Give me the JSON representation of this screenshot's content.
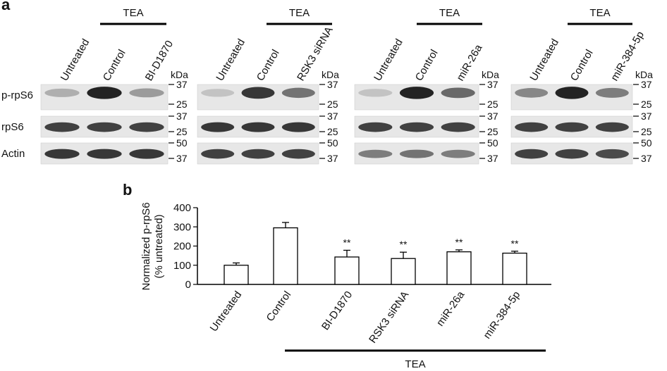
{
  "panel_a": {
    "label": "a",
    "row_labels": [
      "p-rpS6",
      "rpS6",
      "Actin"
    ],
    "unit": "kDa",
    "blots": [
      {
        "treatment_label": "TEA",
        "lanes": [
          "Untreated",
          "Control",
          "BI-D1870"
        ],
        "markers": [
          [
            "37",
            "25"
          ],
          [
            "37",
            "25"
          ],
          [
            "50",
            "37"
          ]
        ],
        "band_intensity": [
          [
            0.25,
            0.95,
            0.35
          ],
          [
            0.8,
            0.8,
            0.8
          ],
          [
            0.85,
            0.85,
            0.85
          ]
        ]
      },
      {
        "treatment_label": "TEA",
        "lanes": [
          "Untreated",
          "Control",
          "RSK3 siRNA"
        ],
        "markers": [
          [
            "37",
            "25"
          ],
          [
            "37",
            "25"
          ],
          [
            "50",
            "37"
          ]
        ],
        "band_intensity": [
          [
            0.15,
            0.85,
            0.55
          ],
          [
            0.85,
            0.85,
            0.85
          ],
          [
            0.8,
            0.8,
            0.8
          ]
        ]
      },
      {
        "treatment_label": "TEA",
        "lanes": [
          "Untreated",
          "Control",
          "miR-26a"
        ],
        "markers": [
          [
            "37",
            "25"
          ],
          [
            "37",
            "25"
          ],
          [
            "50",
            "37"
          ]
        ],
        "band_intensity": [
          [
            0.15,
            0.95,
            0.6
          ],
          [
            0.8,
            0.8,
            0.8
          ],
          [
            0.5,
            0.55,
            0.5
          ]
        ]
      },
      {
        "treatment_label": "TEA",
        "lanes": [
          "Untreated",
          "Control",
          "miR-384-5p"
        ],
        "markers": [
          [
            "37",
            "25"
          ],
          [
            "37",
            "25"
          ],
          [
            "50",
            "37"
          ]
        ],
        "band_intensity": [
          [
            0.45,
            0.95,
            0.5
          ],
          [
            0.8,
            0.8,
            0.8
          ],
          [
            0.8,
            0.8,
            0.75
          ]
        ]
      }
    ]
  },
  "panel_b": {
    "label": "b",
    "treatment_label": "TEA"
  },
  "chart_data": {
    "type": "bar",
    "categories": [
      "Untreated",
      "Control",
      "BI-D1870",
      "RSK3 siRNA",
      "miR-26a",
      "miR-384-5p"
    ],
    "values": [
      100,
      295,
      143,
      135,
      170,
      163
    ],
    "errors": [
      12,
      28,
      35,
      33,
      10,
      10
    ],
    "significance": [
      "",
      "",
      "**",
      "**",
      "**",
      "**"
    ],
    "ylabel": "Normalized p-rpS6 (% untreated)",
    "ylabel_lines": [
      "Normalized p-rpS6",
      "(% untreated)"
    ],
    "ylim": [
      0,
      400
    ],
    "yticks": [
      0,
      100,
      200,
      300,
      400
    ],
    "grid": false
  }
}
